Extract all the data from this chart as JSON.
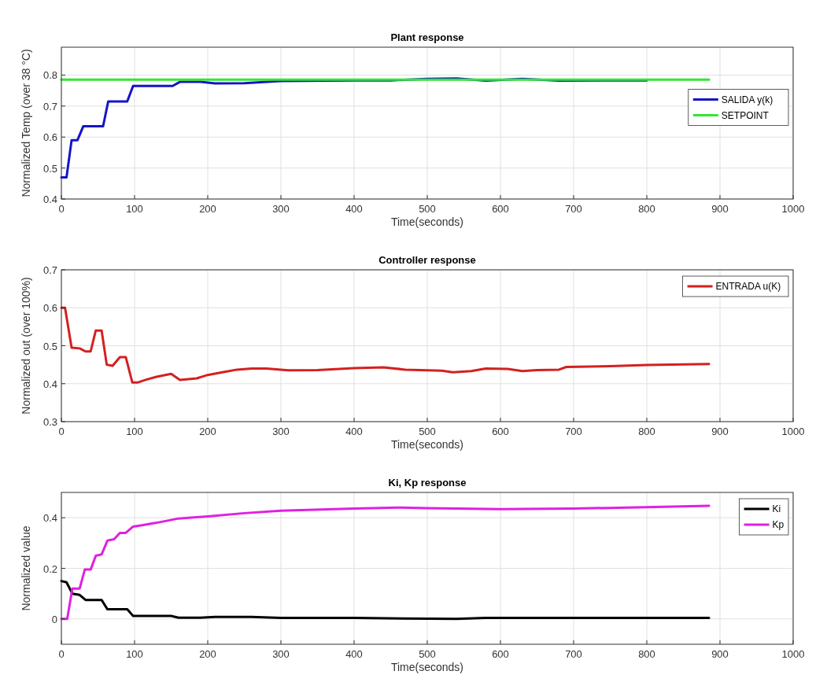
{
  "chart_data": [
    {
      "type": "line",
      "title": "Plant response",
      "xlabel": "Time(seconds)",
      "ylabel": "Normalized Temp (over 38 °C)",
      "xlim": [
        0,
        1000
      ],
      "xticks": [
        0,
        100,
        200,
        300,
        400,
        500,
        600,
        700,
        800,
        900,
        1000
      ],
      "ylim": [
        0.4,
        0.89
      ],
      "yticks": [
        0.4,
        0.5,
        0.6,
        0.7,
        0.8
      ],
      "grid": true,
      "legend": "right",
      "line_style": "solid",
      "marker": "none",
      "series": [
        {
          "name": "SALIDA y(k)",
          "color": "#1414c8",
          "x": [
            0,
            7,
            14,
            22,
            30,
            57,
            64,
            90,
            98,
            152,
            162,
            190,
            210,
            250,
            300,
            400,
            450,
            500,
            540,
            580,
            630,
            680,
            800
          ],
          "values": [
            0.47,
            0.47,
            0.59,
            0.59,
            0.635,
            0.635,
            0.715,
            0.715,
            0.765,
            0.765,
            0.778,
            0.778,
            0.773,
            0.774,
            0.781,
            0.783,
            0.783,
            0.788,
            0.789,
            0.782,
            0.788,
            0.782,
            0.783
          ]
        },
        {
          "name": "SETPOINT",
          "color": "#33e633",
          "x": [
            0,
            885
          ],
          "values": [
            0.785,
            0.785
          ]
        }
      ]
    },
    {
      "type": "line",
      "title": "Controller response",
      "xlabel": "Time(seconds)",
      "ylabel": "Normalized out (over 100%)",
      "xlim": [
        0,
        1000
      ],
      "xticks": [
        0,
        100,
        200,
        300,
        400,
        500,
        600,
        700,
        800,
        900,
        1000
      ],
      "ylim": [
        0.3,
        0.7
      ],
      "yticks": [
        0.3,
        0.4,
        0.5,
        0.6,
        0.7
      ],
      "grid": true,
      "legend": "top right",
      "line_style": "solid",
      "marker": "none",
      "series": [
        {
          "name": "ENTRADA u(K)",
          "color": "#d42020",
          "x": [
            0,
            5,
            14,
            25,
            33,
            40,
            47,
            55,
            62,
            70,
            80,
            88,
            97,
            104,
            115,
            130,
            150,
            162,
            185,
            200,
            220,
            240,
            260,
            280,
            310,
            350,
            400,
            440,
            470,
            520,
            535,
            560,
            580,
            610,
            630,
            650,
            680,
            690,
            750,
            800,
            885
          ],
          "values": [
            0.6,
            0.6,
            0.495,
            0.493,
            0.485,
            0.485,
            0.54,
            0.54,
            0.45,
            0.447,
            0.47,
            0.47,
            0.403,
            0.403,
            0.41,
            0.418,
            0.426,
            0.41,
            0.414,
            0.423,
            0.43,
            0.437,
            0.44,
            0.44,
            0.435,
            0.436,
            0.441,
            0.443,
            0.437,
            0.434,
            0.43,
            0.433,
            0.44,
            0.439,
            0.433,
            0.436,
            0.437,
            0.444,
            0.446,
            0.449,
            0.452
          ]
        }
      ]
    },
    {
      "type": "line",
      "title": "Ki, Kp response",
      "xlabel": "Time(seconds)",
      "ylabel": "Normalized value",
      "xlim": [
        0,
        1000
      ],
      "xticks": [
        0,
        100,
        200,
        300,
        400,
        500,
        600,
        700,
        800,
        900,
        1000
      ],
      "ylim": [
        -0.1,
        0.5
      ],
      "yticks": [
        0,
        0.2,
        0.4
      ],
      "grid": true,
      "legend": "top right",
      "line_style": "solid",
      "marker": "none",
      "series": [
        {
          "name": "Ki",
          "color": "#000000",
          "x": [
            0,
            7,
            15,
            25,
            33,
            55,
            63,
            90,
            98,
            150,
            160,
            190,
            210,
            260,
            300,
            400,
            500,
            540,
            580,
            700,
            885
          ],
          "values": [
            0.15,
            0.145,
            0.1,
            0.095,
            0.075,
            0.075,
            0.038,
            0.038,
            0.012,
            0.012,
            0.005,
            0.005,
            0.008,
            0.008,
            0.004,
            0.004,
            0.001,
            0.0,
            0.004,
            0.004,
            0.004
          ]
        },
        {
          "name": "Kp",
          "color": "#e020e0",
          "x": [
            0,
            8,
            15,
            25,
            32,
            40,
            47,
            55,
            63,
            72,
            80,
            88,
            98,
            110,
            130,
            160,
            200,
            250,
            300,
            400,
            460,
            500,
            600,
            700,
            800,
            885
          ],
          "values": [
            0,
            0,
            0.12,
            0.12,
            0.195,
            0.195,
            0.25,
            0.255,
            0.31,
            0.315,
            0.34,
            0.34,
            0.365,
            0.37,
            0.38,
            0.397,
            0.405,
            0.418,
            0.428,
            0.436,
            0.44,
            0.438,
            0.434,
            0.436,
            0.442,
            0.447
          ]
        }
      ]
    }
  ]
}
